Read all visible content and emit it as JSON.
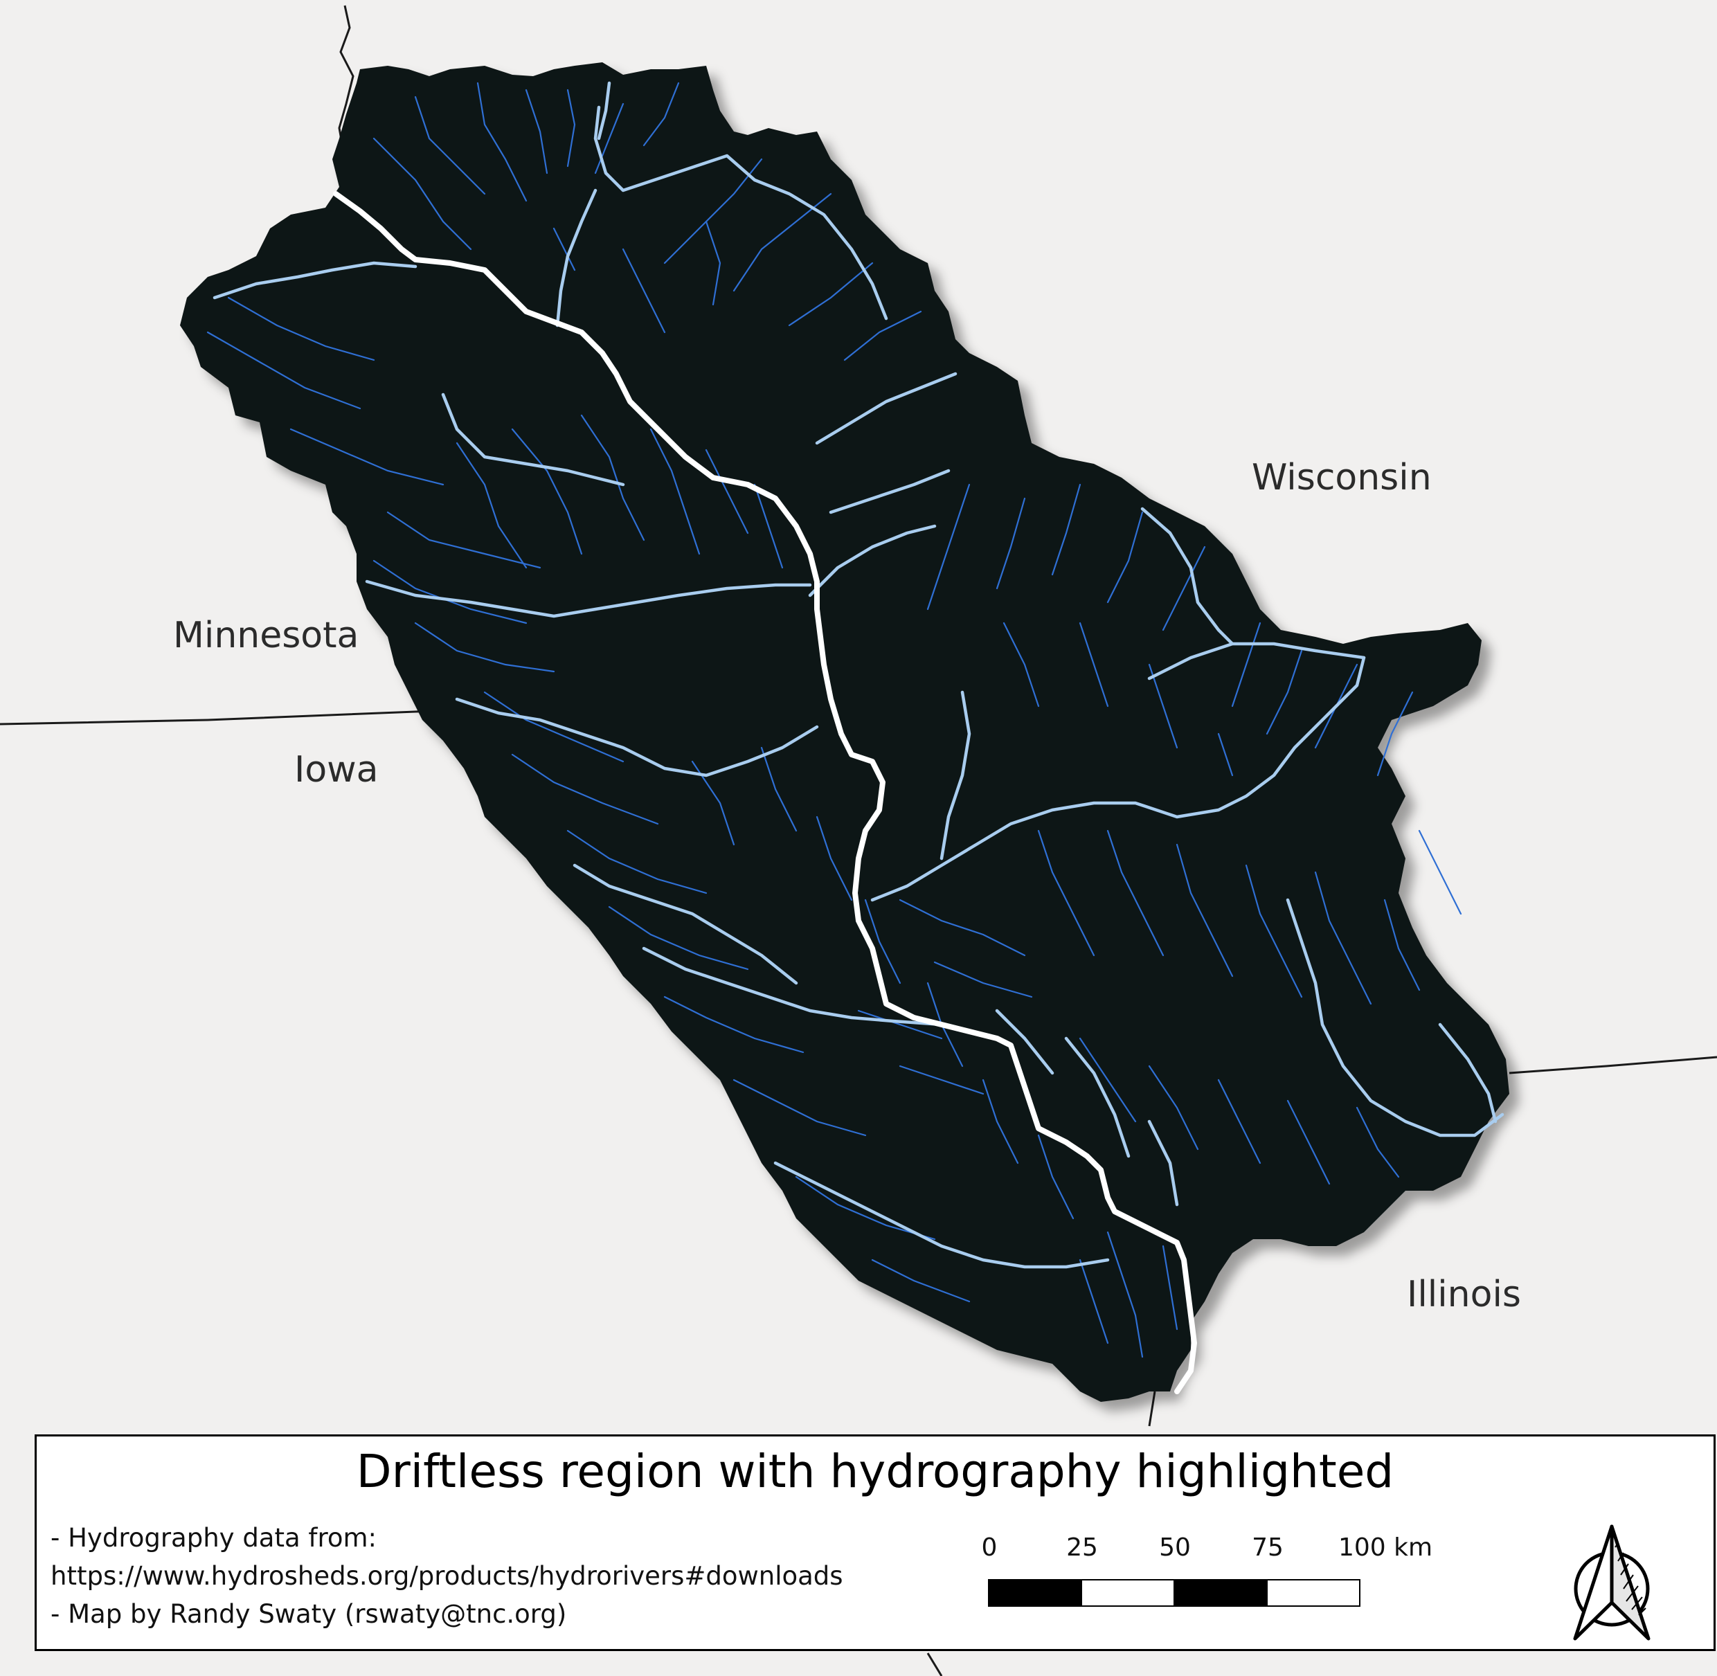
{
  "labels": {
    "wisconsin": "Wisconsin",
    "minnesota": "Minnesota",
    "iowa": "Iowa",
    "illinois": "Illinois"
  },
  "legend": {
    "title": "Driftless region with hydrography highlighted",
    "note_1": "- Hydrography data from:",
    "note_2": "https://www.hydrosheds.org/products/hydrorivers#downloads",
    "note_3": "- Map by Randy Swaty (rswaty@tnc.org)"
  },
  "scalebar": {
    "ticks": [
      "0",
      "25",
      "50",
      "75",
      "100 km"
    ]
  },
  "colors": {
    "background": "#f1f0ef",
    "region_fill": "#0b1212",
    "main_river": "#ffffff",
    "major_rivers": "#a9cdef",
    "minor_streams": "#2f6fd4"
  },
  "icons": {
    "north_arrow": "north-arrow-icon"
  }
}
